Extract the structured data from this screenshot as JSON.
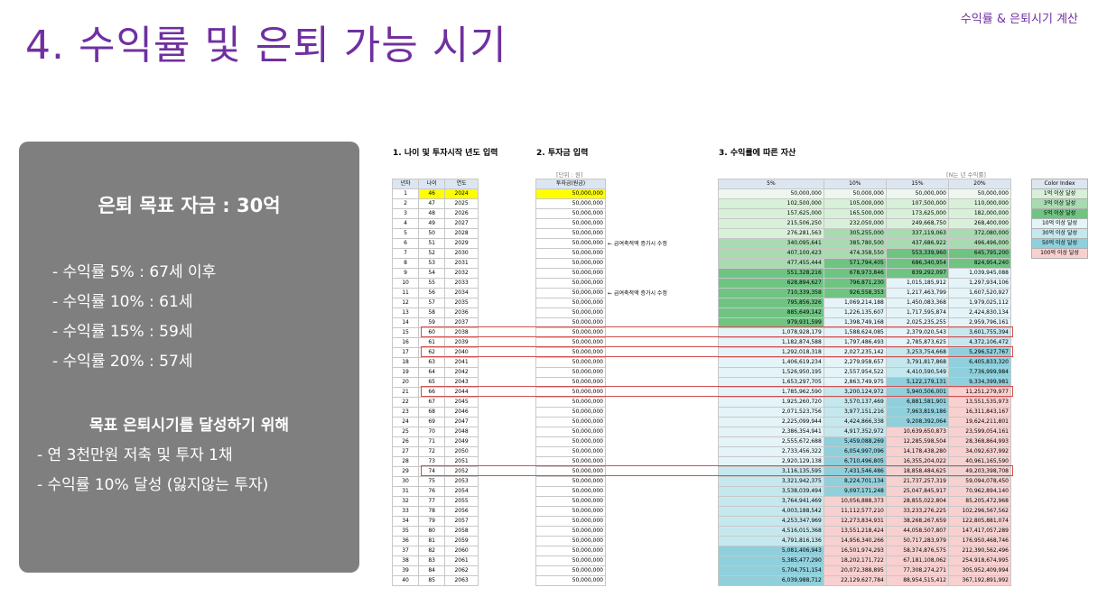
{
  "header": {
    "corner_label": "수익률 & 은퇴시기 계산",
    "title": "4. 수익률 및 은퇴 가능 시기"
  },
  "panel": {
    "goal": "은퇴 목표 자금 : 30억",
    "rates": [
      "- 수익률 5% : 67세 이후",
      "- 수익률 10% : 61세",
      "- 수익률 15% : 59세",
      "- 수익률 20% : 57세"
    ],
    "plan_title": "목표 은퇴시기를 달성하기 위해",
    "plan_items": [
      "- 연 3천만원 저축 및 투자 1채",
      "- 수익률 10% 달성 (잃지않는 투자)"
    ]
  },
  "sheet": {
    "section1": "1. 나이 및 투자시작 년도 입력",
    "section2": "2. 투자금 입력",
    "section3": "3. 수익률에 따른 자산",
    "unit_left": "[단위 : 원]",
    "unit_right": "[N는 년 수익률]",
    "note": "← 급여축적액 증가시 수정",
    "head1": [
      "년차",
      "나이",
      "연도"
    ],
    "head2": "투자금(원금)",
    "head3": [
      "5%",
      "10%",
      "15%",
      "20%"
    ],
    "invest": "50,000,000",
    "col5": [
      "50,000,000",
      "102,500,000",
      "157,625,000",
      "215,506,250",
      "276,281,563",
      "340,095,641",
      "407,100,423",
      "477,455,444",
      "551,328,216",
      "628,894,627",
      "710,339,358",
      "795,856,326",
      "885,649,142",
      "979,931,599",
      "1,078,928,179",
      "1,182,874,588",
      "1,292,018,318",
      "1,406,619,234",
      "1,526,950,195",
      "1,653,297,705",
      "1,785,962,590",
      "1,925,260,720",
      "2,071,523,756",
      "2,225,099,944",
      "2,386,354,941",
      "2,555,672,688",
      "2,733,456,322",
      "2,920,129,138",
      "3,116,135,595",
      "3,321,942,375",
      "3,538,039,494",
      "3,764,941,469",
      "4,003,188,542",
      "4,253,347,969",
      "4,516,015,368",
      "4,791,816,136",
      "5,081,406,943",
      "5,385,477,290",
      "5,704,751,154",
      "6,039,988,712"
    ],
    "col10": [
      "50,000,000",
      "105,000,000",
      "165,500,000",
      "232,050,000",
      "305,255,000",
      "385,780,500",
      "474,358,550",
      "571,794,405",
      "678,973,846",
      "796,871,230",
      "926,558,353",
      "1,069,214,188",
      "1,226,135,607",
      "1,398,749,168",
      "1,588,624,085",
      "1,797,486,493",
      "2,027,235,142",
      "2,279,958,657",
      "2,557,954,522",
      "2,863,749,975",
      "3,200,124,972",
      "3,570,137,469",
      "3,977,151,216",
      "4,424,866,338",
      "4,917,352,972",
      "5,459,088,269",
      "6,054,997,096",
      "6,710,496,805",
      "7,431,546,486",
      "8,224,701,134",
      "9,097,171,248",
      "10,056,888,373",
      "11,112,577,210",
      "12,273,834,931",
      "13,551,218,424",
      "14,956,340,266",
      "16,501,974,293",
      "18,202,171,722",
      "20,072,388,895",
      "22,129,627,784"
    ],
    "col15": [
      "50,000,000",
      "107,500,000",
      "173,625,000",
      "249,668,750",
      "337,119,063",
      "437,686,922",
      "553,339,960",
      "686,340,954",
      "839,292,097",
      "1,015,185,912",
      "1,217,463,799",
      "1,450,083,368",
      "1,717,595,874",
      "2,025,235,255",
      "2,379,020,543",
      "2,785,873,625",
      "3,253,754,668",
      "3,791,817,868",
      "4,410,590,549",
      "5,122,179,131",
      "5,940,506,001",
      "6,881,581,901",
      "7,963,819,186",
      "9,208,392,064",
      "10,639,650,873",
      "12,285,598,504",
      "14,178,438,280",
      "16,355,204,022",
      "18,858,484,625",
      "21,737,257,319",
      "25,047,845,917",
      "28,855,022,804",
      "33,233,276,225",
      "38,268,267,659",
      "44,058,507,807",
      "50,717,283,979",
      "58,374,876,575",
      "67,181,108,062",
      "77,308,274,271",
      "88,954,515,412"
    ],
    "col20": [
      "50,000,000",
      "110,000,000",
      "182,000,000",
      "268,400,000",
      "372,080,000",
      "496,496,000",
      "645,795,200",
      "824,954,240",
      "1,039,945,088",
      "1,297,934,106",
      "1,607,520,927",
      "1,979,025,112",
      "2,424,830,134",
      "2,959,796,161",
      "3,601,755,394",
      "4,372,106,472",
      "5,296,527,767",
      "6,405,833,320",
      "7,736,999,984",
      "9,334,399,981",
      "11,251,279,977",
      "13,551,535,973",
      "16,311,843,167",
      "19,624,211,801",
      "23,599,054,161",
      "28,368,864,993",
      "34,092,637,992",
      "40,961,165,590",
      "49,203,398,708",
      "59,094,078,450",
      "70,962,894,140",
      "85,205,472,968",
      "102,296,567,562",
      "122,805,881,074",
      "147,417,057,289",
      "176,950,468,746",
      "212,390,562,496",
      "254,918,674,995",
      "305,952,409,994",
      "367,192,891,992"
    ],
    "legend": [
      "Color Index",
      "1억 이상 달성",
      "3억 이상 달성",
      "5억 이상 달성",
      "10억 이상 달성",
      "30억 이상 달성",
      "50억 이상 달성",
      "100억 이상 달성"
    ],
    "colors": {
      "lightGreen": "#d8f0d8",
      "midGreen": "#a8dcb0",
      "green": "#6fc482",
      "pale": "#e4f4f8",
      "cyan": "#c5e8ee",
      "teal": "#8fd0dc",
      "pink": "#f9d0d0",
      "yellow": "#ffff00"
    }
  }
}
